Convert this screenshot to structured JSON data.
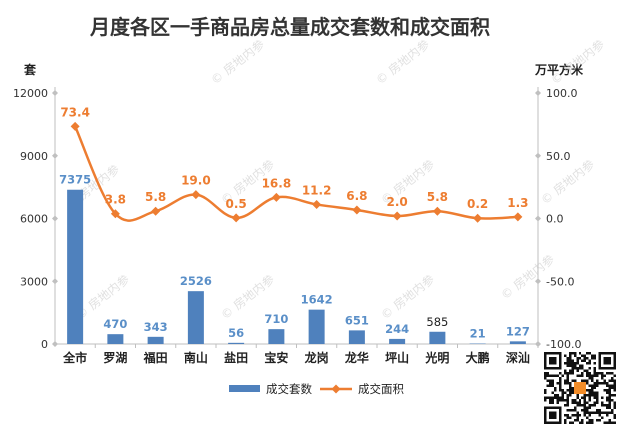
{
  "chart_data": {
    "type": "bar",
    "title": "月度各区一手商品房总量成交套数和成交面积",
    "categories": [
      "全市",
      "罗湖",
      "福田",
      "南山",
      "盐田",
      "宝安",
      "龙岗",
      "龙华",
      "坪山",
      "光明",
      "大鹏",
      "深汕"
    ],
    "series": [
      {
        "name": "成交套数",
        "type": "bar",
        "axis": "left",
        "values": [
          7375,
          470,
          343,
          2526,
          56,
          710,
          1642,
          651,
          244,
          585,
          21,
          127
        ],
        "color": "#4f81bd"
      },
      {
        "name": "成交面积",
        "type": "line",
        "axis": "right",
        "values": [
          73.4,
          3.8,
          5.8,
          19.0,
          0.5,
          16.8,
          11.2,
          6.8,
          2.0,
          5.8,
          0.2,
          1.3
        ],
        "value_labels": [
          "73.4",
          "3.8",
          "5.8",
          "19.0",
          "0.5",
          "16.8",
          "11.2",
          "6.8",
          "2.0",
          "5.8",
          "0.2",
          "1.3"
        ],
        "color": "#ed7d31"
      }
    ],
    "y_left": {
      "label": "套",
      "ylim": [
        0,
        12000
      ],
      "ticks": [
        0,
        3000,
        6000,
        9000,
        12000
      ],
      "tick_labels": [
        "0",
        "3000",
        "6000",
        "9000",
        "12000"
      ]
    },
    "y_right": {
      "label": "万平方米",
      "ylim": [
        -100,
        100
      ],
      "ticks": [
        -100,
        -50,
        0,
        50,
        100
      ],
      "tick_labels": [
        "-100.0",
        "-50.0",
        "0.0",
        "50.0",
        "100.0"
      ]
    },
    "grid": false,
    "legend": {
      "position": "bottom",
      "items": [
        "成交套数",
        "成交面积"
      ]
    }
  },
  "watermark_text": "房地内参",
  "qr_code": "qr-code"
}
